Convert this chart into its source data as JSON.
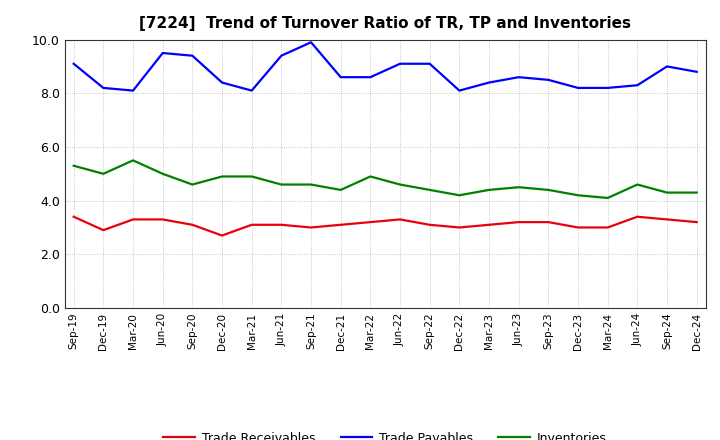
{
  "title": "[7224]  Trend of Turnover Ratio of TR, TP and Inventories",
  "labels": [
    "Sep-19",
    "Dec-19",
    "Mar-20",
    "Jun-20",
    "Sep-20",
    "Dec-20",
    "Mar-21",
    "Jun-21",
    "Sep-21",
    "Dec-21",
    "Mar-22",
    "Jun-22",
    "Sep-22",
    "Dec-22",
    "Mar-23",
    "Jun-23",
    "Sep-23",
    "Dec-23",
    "Mar-24",
    "Jun-24",
    "Sep-24",
    "Dec-24"
  ],
  "trade_receivables": [
    3.4,
    2.9,
    3.3,
    3.3,
    3.1,
    2.7,
    3.1,
    3.1,
    3.0,
    3.1,
    3.2,
    3.3,
    3.1,
    3.0,
    3.1,
    3.2,
    3.2,
    3.0,
    3.0,
    3.4,
    3.3,
    3.2
  ],
  "trade_payables": [
    9.1,
    8.2,
    8.1,
    9.5,
    9.4,
    8.4,
    8.1,
    9.4,
    9.9,
    8.6,
    8.6,
    9.1,
    9.1,
    8.1,
    8.4,
    8.6,
    8.5,
    8.2,
    8.2,
    8.3,
    9.0,
    8.8
  ],
  "inventories": [
    5.3,
    5.0,
    5.5,
    5.0,
    4.6,
    4.9,
    4.9,
    4.6,
    4.6,
    4.4,
    4.9,
    4.6,
    4.4,
    4.2,
    4.4,
    4.5,
    4.4,
    4.2,
    4.1,
    4.6,
    4.3,
    4.3
  ],
  "trade_receivables_color": "#e8000d",
  "trade_payables_color": "#0000ff",
  "inventories_color": "#008000",
  "ylim": [
    0.0,
    10.0
  ],
  "yticks": [
    0.0,
    2.0,
    4.0,
    6.0,
    8.0,
    10.0
  ],
  "background_color": "#ffffff",
  "grid_color": "#999999",
  "legend_labels": [
    "Trade Receivables",
    "Trade Payables",
    "Inventories"
  ]
}
